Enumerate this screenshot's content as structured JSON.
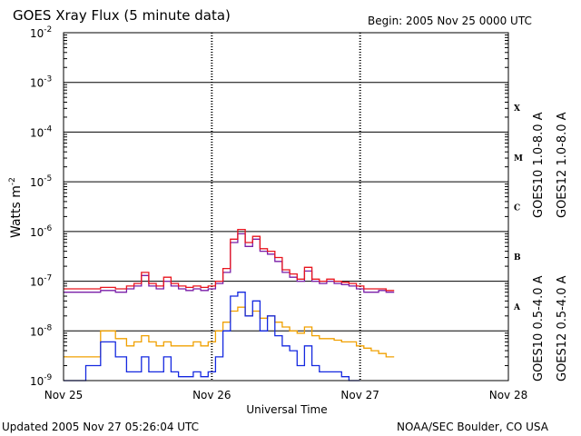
{
  "header": {
    "title": "GOES Xray Flux (5 minute data)",
    "begin": "Begin:  2005 Nov 25 0000 UTC"
  },
  "footer": {
    "updated": "Updated 2005 Nov 27 05:26:04 UTC",
    "source": "NOAA/SEC Boulder, CO USA"
  },
  "colors": {
    "goes10_long": "#7a1ea8",
    "goes12_long": "#e8141e",
    "goes10_short": "#f0a000",
    "goes12_short": "#1428e0"
  },
  "chart_data": {
    "type": "line",
    "title": "GOES Xray Flux (5 minute data)",
    "xlabel": "Universal Time",
    "ylabel": "Watts m",
    "ylabel_sup": "-2",
    "scale": "log",
    "ylim": [
      1e-09,
      0.01
    ],
    "xlim": [
      0,
      3
    ],
    "grid": true,
    "x_ticks": [
      {
        "x": 0,
        "label": "Nov 25"
      },
      {
        "x": 1,
        "label": "Nov 26"
      },
      {
        "x": 2,
        "label": "Nov 27"
      },
      {
        "x": 3,
        "label": "Nov 28"
      }
    ],
    "y_ticks": [
      {
        "exp": -2,
        "base": "10",
        "sup": "-2"
      },
      {
        "exp": -3,
        "base": "10",
        "sup": "-3"
      },
      {
        "exp": -4,
        "base": "10",
        "sup": "-4"
      },
      {
        "exp": -5,
        "base": "10",
        "sup": "-5"
      },
      {
        "exp": -6,
        "base": "10",
        "sup": "-6"
      },
      {
        "exp": -7,
        "base": "10",
        "sup": "-7"
      },
      {
        "exp": -8,
        "base": "10",
        "sup": "-8"
      },
      {
        "exp": -9,
        "base": "10",
        "sup": "-9"
      }
    ],
    "flare_classes": [
      {
        "label": "X",
        "exp": -3.5
      },
      {
        "label": "M",
        "exp": -4.5
      },
      {
        "label": "C",
        "exp": -5.5
      },
      {
        "label": "B",
        "exp": -6.5
      },
      {
        "label": "A",
        "exp": -7.5
      }
    ],
    "series": [
      {
        "name": "GOES10 1.0-8.0 A",
        "color": "#7a1ea8",
        "x": [
          0.0,
          0.1,
          0.2,
          0.3,
          0.4,
          0.45,
          0.5,
          0.55,
          0.6,
          0.65,
          0.7,
          0.75,
          0.8,
          0.85,
          0.9,
          0.95,
          1.0,
          1.05,
          1.1,
          1.15,
          1.2,
          1.25,
          1.3,
          1.35,
          1.4,
          1.45,
          1.5,
          1.55,
          1.6,
          1.65,
          1.7,
          1.75,
          1.8,
          1.85,
          1.9,
          1.95,
          2.0,
          2.05,
          2.1,
          2.15,
          2.2,
          2.23
        ],
        "y": [
          6e-08,
          6e-08,
          6e-08,
          6.5e-08,
          6e-08,
          7e-08,
          8e-08,
          1.3e-07,
          8e-08,
          7e-08,
          1e-07,
          8e-08,
          7e-08,
          6.5e-08,
          7e-08,
          6.5e-08,
          7e-08,
          9e-08,
          1.5e-07,
          6e-07,
          9e-07,
          5e-07,
          7e-07,
          4e-07,
          3.5e-07,
          2.5e-07,
          1.5e-07,
          1.2e-07,
          1e-07,
          1.6e-07,
          1e-07,
          9e-08,
          1e-07,
          9e-08,
          8.5e-08,
          8e-08,
          7e-08,
          6e-08,
          6e-08,
          6.5e-08,
          6e-08,
          6e-08
        ]
      },
      {
        "name": "GOES12 1.0-8.0 A",
        "color": "#e8141e",
        "x": [
          0.0,
          0.1,
          0.2,
          0.3,
          0.4,
          0.45,
          0.5,
          0.55,
          0.6,
          0.65,
          0.7,
          0.75,
          0.8,
          0.85,
          0.9,
          0.95,
          1.0,
          1.05,
          1.1,
          1.15,
          1.2,
          1.25,
          1.3,
          1.35,
          1.4,
          1.45,
          1.5,
          1.55,
          1.6,
          1.65,
          1.7,
          1.75,
          1.8,
          1.85,
          1.9,
          1.95,
          2.0,
          2.05,
          2.1,
          2.15,
          2.2,
          2.23
        ],
        "y": [
          7e-08,
          7e-08,
          7e-08,
          7.5e-08,
          7e-08,
          8e-08,
          9e-08,
          1.5e-07,
          9e-08,
          8e-08,
          1.2e-07,
          9e-08,
          8e-08,
          7.5e-08,
          8e-08,
          7.5e-08,
          8e-08,
          1e-07,
          1.8e-07,
          7e-07,
          1.1e-06,
          6e-07,
          8e-07,
          4.5e-07,
          4e-07,
          3e-07,
          1.7e-07,
          1.4e-07,
          1.1e-07,
          1.9e-07,
          1.1e-07,
          1e-07,
          1.1e-07,
          1e-07,
          9.5e-08,
          9e-08,
          8e-08,
          7e-08,
          7e-08,
          7e-08,
          6.5e-08,
          6.5e-08
        ]
      },
      {
        "name": "GOES10 0.5-4.0 A",
        "color": "#f0a000",
        "x": [
          0.0,
          0.1,
          0.2,
          0.3,
          0.4,
          0.45,
          0.5,
          0.55,
          0.6,
          0.65,
          0.7,
          0.75,
          0.8,
          0.85,
          0.9,
          0.95,
          1.0,
          1.05,
          1.1,
          1.15,
          1.2,
          1.25,
          1.3,
          1.35,
          1.4,
          1.45,
          1.5,
          1.55,
          1.6,
          1.65,
          1.7,
          1.75,
          1.8,
          1.85,
          1.9,
          1.95,
          2.0,
          2.05,
          2.1,
          2.15,
          2.2,
          2.23
        ],
        "y": [
          3e-09,
          3e-09,
          3e-09,
          1e-08,
          7e-09,
          5e-09,
          6e-09,
          8e-09,
          6e-09,
          5e-09,
          6e-09,
          5e-09,
          5e-09,
          5e-09,
          6e-09,
          5e-09,
          6e-09,
          1e-08,
          1.5e-08,
          2.5e-08,
          3e-08,
          2e-08,
          2.5e-08,
          1.8e-08,
          2e-08,
          1.5e-08,
          1.2e-08,
          1e-08,
          9e-09,
          1.2e-08,
          8e-09,
          7e-09,
          7e-09,
          6.5e-09,
          6e-09,
          6e-09,
          5e-09,
          4.5e-09,
          4e-09,
          3.5e-09,
          3e-09,
          3e-09
        ]
      },
      {
        "name": "GOES12 0.5-4.0 A",
        "color": "#1428e0",
        "x": [
          0.0,
          0.1,
          0.2,
          0.3,
          0.4,
          0.45,
          0.5,
          0.55,
          0.6,
          0.65,
          0.7,
          0.75,
          0.8,
          0.85,
          0.9,
          0.95,
          1.0,
          1.05,
          1.1,
          1.15,
          1.2,
          1.25,
          1.3,
          1.35,
          1.4,
          1.45,
          1.5,
          1.55,
          1.6,
          1.65,
          1.7,
          1.75,
          1.8,
          1.85,
          1.9,
          1.95,
          2.0
        ],
        "y": [
          1e-09,
          1e-09,
          2e-09,
          6e-09,
          3e-09,
          1.5e-09,
          1.5e-09,
          3e-09,
          1.5e-09,
          1.5e-09,
          3e-09,
          1.5e-09,
          1.2e-09,
          1.2e-09,
          1.5e-09,
          1.2e-09,
          1.5e-09,
          3e-09,
          1e-08,
          5e-08,
          6e-08,
          2e-08,
          4e-08,
          1e-08,
          2e-08,
          8e-09,
          5e-09,
          4e-09,
          2e-09,
          5e-09,
          2e-09,
          1.5e-09,
          1.5e-09,
          1.5e-09,
          1.2e-09,
          1e-09,
          1e-09
        ]
      }
    ]
  }
}
